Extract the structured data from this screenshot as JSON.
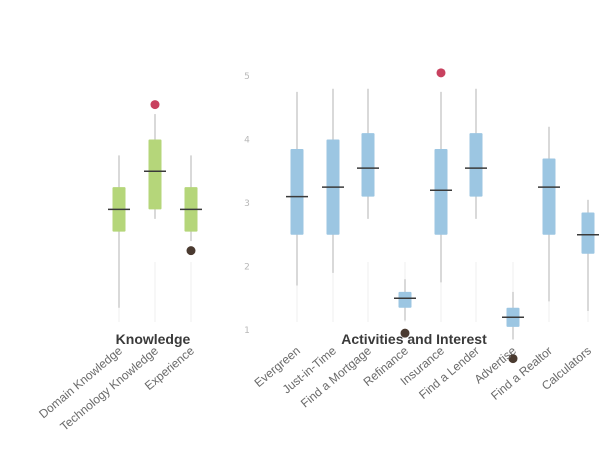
{
  "chart_data": {
    "type": "boxplot",
    "y_axis": {
      "ticks": [
        "1",
        "2",
        "3",
        "4",
        "5"
      ],
      "ylim": [
        0.7,
        5.1
      ]
    },
    "colors": {
      "Knowledge": "#b5d67a",
      "Activities and Interest": "#9cc6e2",
      "whisker": "#d9d9d9",
      "median": "#3a3a3a",
      "outlier_high": "#c8415f",
      "outlier_low": "#4a3a30"
    },
    "groups": [
      {
        "name": "Knowledge",
        "items": [
          {
            "label": "Domain Knowledge",
            "whisker_low": 1.35,
            "q1": 2.55,
            "median": 2.9,
            "q3": 3.25,
            "whisker_high": 3.75
          },
          {
            "label": "Technology Knowledge",
            "whisker_low": 2.75,
            "q1": 2.9,
            "median": 3.5,
            "q3": 4.0,
            "whisker_high": 4.4,
            "outliers": [
              4.55
            ]
          },
          {
            "label": "Experience",
            "whisker_low": 2.4,
            "q1": 2.55,
            "median": 2.9,
            "q3": 3.25,
            "whisker_high": 3.75,
            "outliers": [
              2.25
            ]
          }
        ]
      },
      {
        "name": "Activities and Interest",
        "items": [
          {
            "label": "Evergreen",
            "whisker_low": 1.7,
            "q1": 2.5,
            "median": 3.1,
            "q3": 3.85,
            "whisker_high": 4.75
          },
          {
            "label": "Just-in-Time",
            "whisker_low": 1.9,
            "q1": 2.5,
            "median": 3.25,
            "q3": 4.0,
            "whisker_high": 4.8
          },
          {
            "label": "Find a Mortgage",
            "whisker_low": 2.75,
            "q1": 3.1,
            "median": 3.55,
            "q3": 4.1,
            "whisker_high": 4.8
          },
          {
            "label": "Refinance",
            "whisker_low": 1.15,
            "q1": 1.35,
            "median": 1.5,
            "q3": 1.6,
            "whisker_high": 1.8,
            "outliers": [
              0.95
            ]
          },
          {
            "label": "Insurance",
            "whisker_low": 1.75,
            "q1": 2.5,
            "median": 3.2,
            "q3": 3.85,
            "whisker_high": 4.75,
            "outliers": [
              5.05
            ]
          },
          {
            "label": "Find a Lender",
            "whisker_low": 2.75,
            "q1": 3.1,
            "median": 3.55,
            "q3": 4.1,
            "whisker_high": 4.8
          },
          {
            "label": "Advertise",
            "whisker_low": 0.85,
            "q1": 1.05,
            "median": 1.2,
            "q3": 1.35,
            "whisker_high": 1.6,
            "outliers": [
              0.55
            ]
          },
          {
            "label": "Find a Realtor",
            "whisker_low": 1.45,
            "q1": 2.5,
            "median": 3.25,
            "q3": 3.7,
            "whisker_high": 4.2
          },
          {
            "label": "Calculators",
            "whisker_low": 1.3,
            "q1": 2.2,
            "median": 2.5,
            "q3": 2.85,
            "whisker_high": 3.05
          }
        ]
      }
    ]
  }
}
